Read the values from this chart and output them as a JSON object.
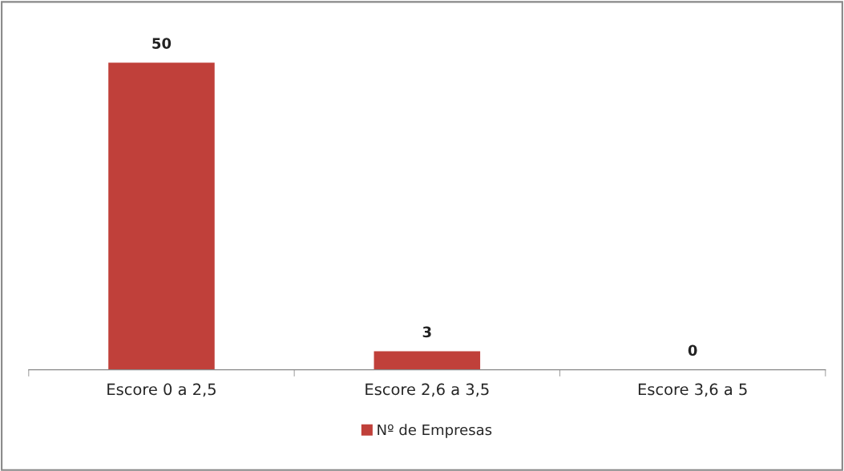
{
  "chart_data": {
    "type": "bar",
    "categories": [
      "Escore 0 a 2,5",
      "Escore 2,6 a 3,5",
      "Escore 3,6 a 5"
    ],
    "series": [
      {
        "name": "Nº de Empresas",
        "color": "#c0403a",
        "values": [
          50,
          3,
          0
        ]
      }
    ],
    "data_labels": true,
    "legend": "bottom",
    "grid": false
  }
}
